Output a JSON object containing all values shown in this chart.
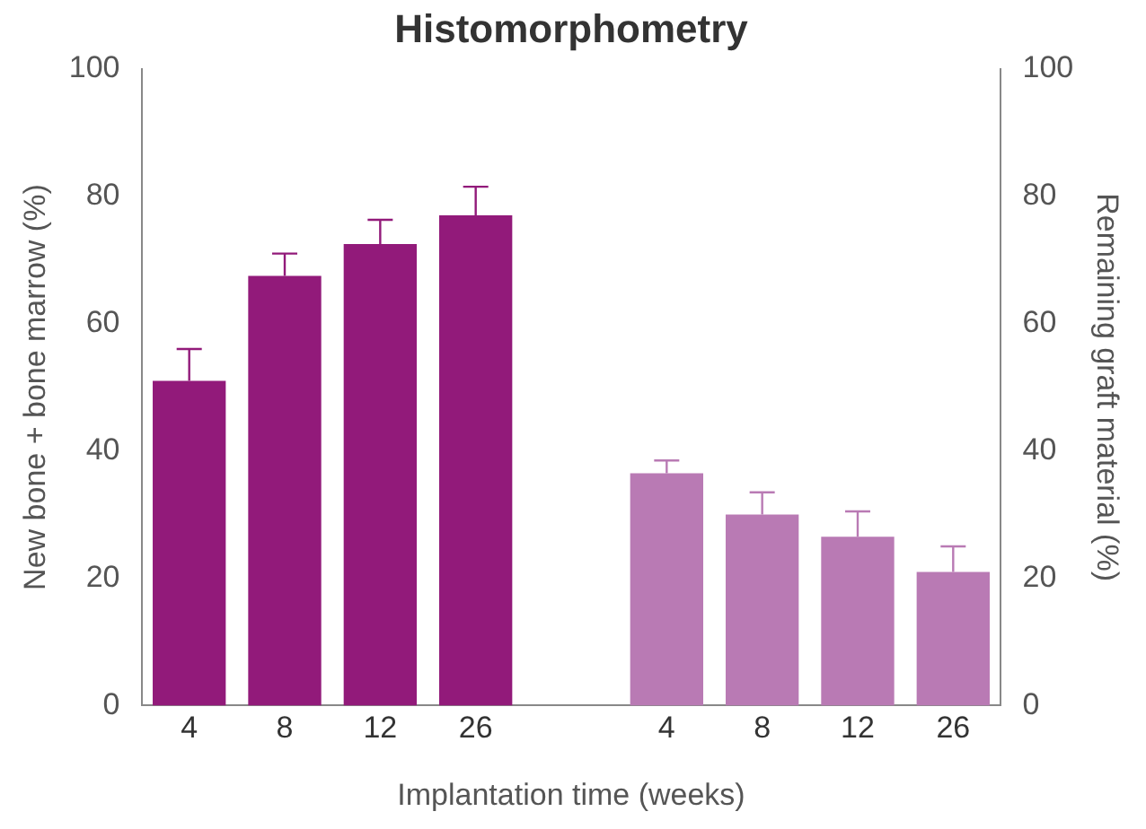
{
  "chart_data": {
    "type": "bar",
    "title": "Histomorphometry",
    "xlabel": "Implantation time (weeks)",
    "ylabel": "New bone + bone marrow (%)",
    "y2label": "Remaining graft material (%)",
    "categories": [
      "4",
      "8",
      "12",
      "26",
      null,
      "4",
      "8",
      "12",
      "26"
    ],
    "series": [
      {
        "color": "#921a7a",
        "values": [
          51,
          67.5,
          72.5,
          77,
          null,
          null,
          null,
          null,
          null
        ],
        "errors": [
          [
            51,
            56
          ],
          [
            67.5,
            71
          ],
          [
            72.5,
            76.3
          ],
          [
            77,
            81.5
          ],
          null,
          null,
          null,
          null,
          null
        ]
      },
      {
        "color": "#b97ab4",
        "axis": "y2",
        "values": [
          null,
          null,
          null,
          null,
          null,
          36.5,
          30,
          26.5,
          21
        ],
        "errors": [
          null,
          null,
          null,
          null,
          null,
          [
            36.5,
            38.5
          ],
          [
            30,
            33.5
          ],
          [
            26.5,
            30.5
          ],
          [
            21,
            25
          ]
        ]
      }
    ],
    "ylim": [
      0,
      100
    ],
    "yticks": [
      0,
      20,
      40,
      60,
      80,
      100
    ],
    "y2lim": [
      0,
      100
    ],
    "y2ticks": [
      0,
      20,
      40,
      60,
      80,
      100
    ]
  }
}
